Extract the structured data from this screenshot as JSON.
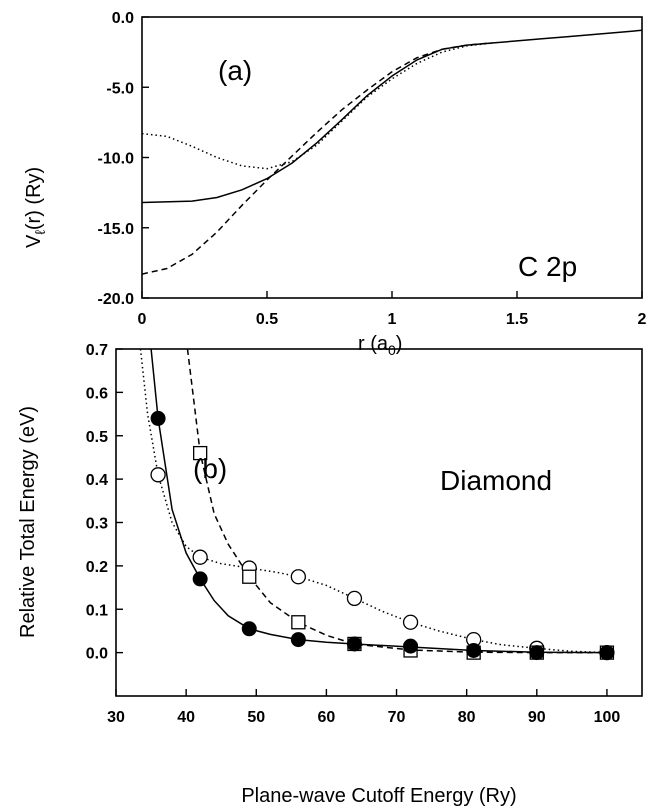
{
  "chart_data": [
    {
      "type": "line",
      "panel_label": "(a)",
      "annotation": "C 2p",
      "xlabel": "r (a",
      "xlabel_sub": "0",
      "xlabel_end": ")",
      "ylabel": "V",
      "ylabel_sub": "ℓ",
      "ylabel_end": "(r) (Ry)",
      "xlim": [
        0,
        2
      ],
      "ylim": [
        -20,
        0
      ],
      "xticks": [
        0,
        0.5,
        1,
        1.5,
        2
      ],
      "xtick_labels": [
        "0",
        "0.5",
        "1",
        "1.5",
        "2"
      ],
      "yticks": [
        0,
        -5,
        -10,
        -15,
        -20
      ],
      "ytick_labels": [
        "0.0",
        "-5.0",
        "-10.0",
        "-15.0",
        "-20.0"
      ],
      "series": [
        {
          "style": "solid",
          "x": [
            0,
            0.2,
            0.3,
            0.4,
            0.5,
            0.6,
            0.7,
            0.8,
            0.9,
            1.0,
            1.1,
            1.2,
            1.3,
            1.4,
            1.5,
            1.6,
            1.7,
            1.8,
            1.9,
            2.0
          ],
          "y": [
            -13.2,
            -13.1,
            -12.85,
            -12.3,
            -11.5,
            -10.4,
            -8.95,
            -7.3,
            -5.6,
            -4.2,
            -3.05,
            -2.3,
            -2.0,
            -1.85,
            -1.7,
            -1.55,
            -1.4,
            -1.25,
            -1.1,
            -0.95
          ]
        },
        {
          "style": "dashed",
          "x": [
            0,
            0.1,
            0.2,
            0.3,
            0.4,
            0.5,
            0.6,
            0.7,
            0.8,
            0.9,
            1.0,
            1.1,
            1.2,
            1.3,
            1.4
          ],
          "y": [
            -18.3,
            -17.9,
            -16.9,
            -15.3,
            -13.4,
            -11.6,
            -9.9,
            -8.2,
            -6.6,
            -5.2,
            -3.9,
            -2.9,
            -2.3,
            -2.0,
            -1.85
          ]
        },
        {
          "style": "dotted",
          "x": [
            0,
            0.1,
            0.2,
            0.3,
            0.4,
            0.5,
            0.6,
            0.7,
            0.8,
            0.9,
            1.0,
            1.1,
            1.2,
            1.3,
            1.4
          ],
          "y": [
            -8.3,
            -8.5,
            -9.2,
            -10.0,
            -10.6,
            -10.8,
            -10.3,
            -9.1,
            -7.4,
            -5.7,
            -4.4,
            -3.3,
            -2.5,
            -2.05,
            -1.85
          ]
        }
      ]
    },
    {
      "type": "scatter",
      "panel_label": "(b)",
      "annotation": "Diamond",
      "xlabel": "Plane-wave Cutoff Energy (Ry)",
      "ylabel": "Relative Total Energy (eV)",
      "xlim": [
        30,
        105
      ],
      "ylim": [
        -0.1,
        0.7
      ],
      "xticks": [
        30,
        40,
        50,
        60,
        70,
        80,
        90,
        100
      ],
      "xtick_labels": [
        "30",
        "40",
        "50",
        "60",
        "70",
        "80",
        "90",
        "100"
      ],
      "yticks": [
        0.0,
        0.1,
        0.2,
        0.3,
        0.4,
        0.5,
        0.6,
        0.7
      ],
      "ytick_labels": [
        "0.0",
        "0.1",
        "0.2",
        "0.3",
        "0.4",
        "0.5",
        "0.6",
        "0.7"
      ],
      "series": [
        {
          "marker": "filled-circle",
          "line": "solid",
          "x": [
            36,
            42,
            49,
            56,
            64,
            72,
            81,
            90,
            100
          ],
          "y": [
            0.54,
            0.17,
            0.055,
            0.03,
            0.02,
            0.015,
            0.005,
            0.0,
            0.0
          ],
          "curve_x": [
            35.0,
            36,
            38,
            40,
            42,
            44,
            46,
            49,
            52,
            56,
            60,
            64,
            72,
            81,
            90,
            100
          ],
          "curve_y": [
            0.7,
            0.54,
            0.33,
            0.23,
            0.17,
            0.12,
            0.085,
            0.055,
            0.042,
            0.03,
            0.024,
            0.02,
            0.013,
            0.005,
            0.001,
            0.0
          ]
        },
        {
          "marker": "open-square",
          "line": "dashed",
          "x": [
            42,
            49,
            56,
            64,
            72,
            81,
            90,
            100
          ],
          "y": [
            0.46,
            0.175,
            0.07,
            0.02,
            0.005,
            0.0,
            0.0,
            0.0
          ],
          "curve_x": [
            40.2,
            42,
            44,
            46,
            49,
            52,
            56,
            60,
            64,
            72,
            81,
            90,
            100
          ],
          "curve_y": [
            0.7,
            0.46,
            0.32,
            0.25,
            0.175,
            0.115,
            0.07,
            0.04,
            0.02,
            0.006,
            0.001,
            0.0,
            0.0
          ]
        },
        {
          "marker": "open-circle",
          "line": "dotted",
          "x": [
            36,
            42,
            49,
            56,
            64,
            72,
            81,
            90,
            100
          ],
          "y": [
            0.41,
            0.22,
            0.195,
            0.175,
            0.125,
            0.07,
            0.03,
            0.01,
            0.0
          ],
          "curve_x": [
            33.5,
            34.5,
            36,
            38,
            40,
            42,
            45,
            49,
            53,
            56,
            60,
            64,
            68,
            72,
            76,
            81,
            85,
            90,
            95,
            100
          ],
          "curve_y": [
            0.7,
            0.55,
            0.41,
            0.3,
            0.245,
            0.22,
            0.205,
            0.195,
            0.185,
            0.175,
            0.155,
            0.125,
            0.095,
            0.07,
            0.05,
            0.03,
            0.018,
            0.01,
            0.003,
            0.0
          ]
        }
      ]
    }
  ]
}
